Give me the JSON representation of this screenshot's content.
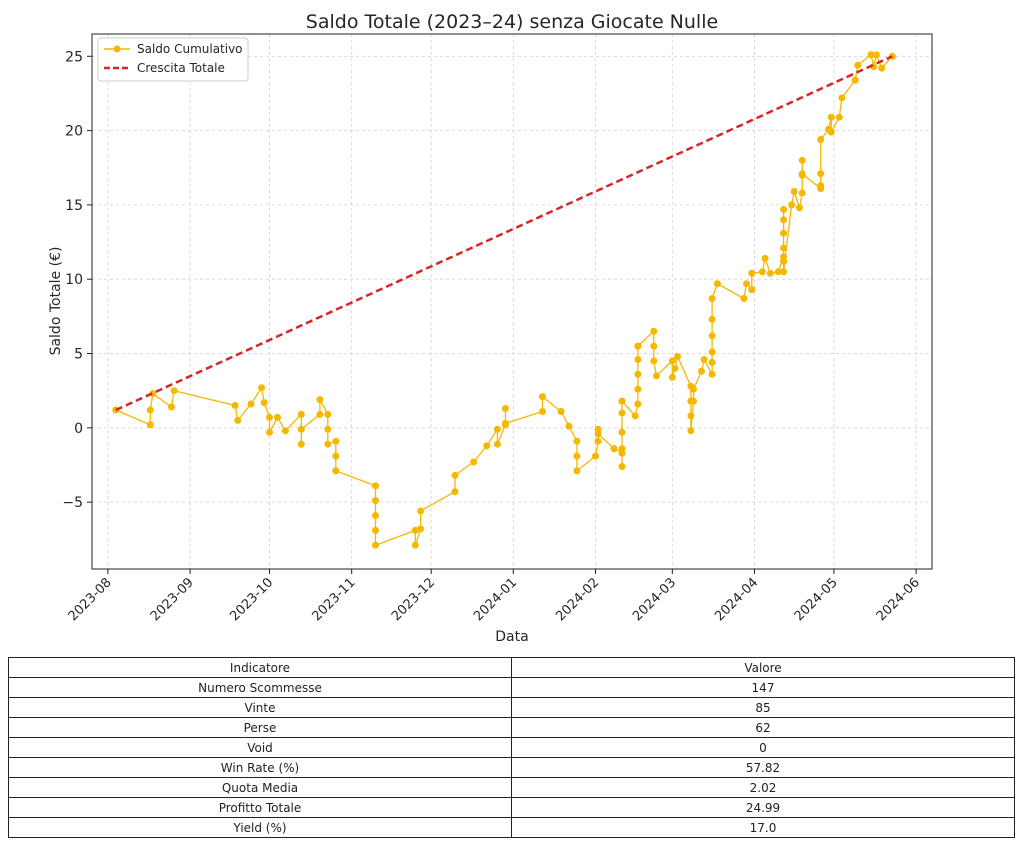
{
  "chart_data": {
    "type": "line",
    "title": "Saldo Totale (2023–24) senza Giocate Nulle",
    "xlabel": "Data",
    "ylabel": "Saldo Totale (€)",
    "x_ticks": [
      "2023-08",
      "2023-09",
      "2023-10",
      "2023-11",
      "2023-12",
      "2024-01",
      "2024-02",
      "2024-03",
      "2024-04",
      "2024-05",
      "2024-06"
    ],
    "y_ticks": [
      -5,
      0,
      5,
      10,
      15,
      20,
      25
    ],
    "xlim": [
      "2023-07-26",
      "2024-06-07"
    ],
    "ylim": [
      -9.5,
      26.5
    ],
    "grid": true,
    "legend_position": "top-left",
    "series": [
      {
        "name": "Saldo Cumulativo",
        "color": "#f5b800",
        "marker": "circle",
        "points": [
          [
            "2023-08-04",
            1.2
          ],
          [
            "2023-08-17",
            0.2
          ],
          [
            "2023-08-17",
            1.2
          ],
          [
            "2023-08-18",
            2.3
          ],
          [
            "2023-08-25",
            1.4
          ],
          [
            "2023-08-26",
            2.5
          ],
          [
            "2023-09-18",
            1.5
          ],
          [
            "2023-09-19",
            0.5
          ],
          [
            "2023-09-24",
            1.6
          ],
          [
            "2023-09-28",
            2.7
          ],
          [
            "2023-09-29",
            1.7
          ],
          [
            "2023-10-01",
            0.7
          ],
          [
            "2023-10-01",
            -0.3
          ],
          [
            "2023-10-04",
            0.7
          ],
          [
            "2023-10-07",
            -0.2
          ],
          [
            "2023-10-13",
            0.9
          ],
          [
            "2023-10-13",
            -0.1
          ],
          [
            "2023-10-13",
            -1.1
          ],
          [
            "2023-10-13",
            -0.1
          ],
          [
            "2023-10-20",
            0.9
          ],
          [
            "2023-10-20",
            1.9
          ],
          [
            "2023-10-23",
            0.9
          ],
          [
            "2023-10-23",
            -0.1
          ],
          [
            "2023-10-23",
            -1.1
          ],
          [
            "2023-10-26",
            -0.9
          ],
          [
            "2023-10-26",
            -1.9
          ],
          [
            "2023-10-26",
            -2.9
          ],
          [
            "2023-11-10",
            -3.9
          ],
          [
            "2023-11-10",
            -4.9
          ],
          [
            "2023-11-10",
            -5.9
          ],
          [
            "2023-11-10",
            -6.9
          ],
          [
            "2023-11-10",
            -7.9
          ],
          [
            "2023-11-25",
            -6.9
          ],
          [
            "2023-11-25",
            -7.9
          ],
          [
            "2023-11-27",
            -6.8
          ],
          [
            "2023-11-27",
            -5.6
          ],
          [
            "2023-12-10",
            -4.3
          ],
          [
            "2023-12-10",
            -3.2
          ],
          [
            "2023-12-17",
            -2.3
          ],
          [
            "2023-12-22",
            -1.2
          ],
          [
            "2023-12-26",
            -0.1
          ],
          [
            "2023-12-26",
            -1.1
          ],
          [
            "2023-12-29",
            0.2
          ],
          [
            "2023-12-29",
            1.3
          ],
          [
            "2023-12-29",
            0.3
          ],
          [
            "2024-01-12",
            1.1
          ],
          [
            "2024-01-12",
            2.1
          ],
          [
            "2024-01-19",
            1.1
          ],
          [
            "2024-01-22",
            0.1
          ],
          [
            "2024-01-25",
            -0.9
          ],
          [
            "2024-01-25",
            -1.9
          ],
          [
            "2024-01-25",
            -2.9
          ],
          [
            "2024-02-01",
            -1.9
          ],
          [
            "2024-02-02",
            -0.9
          ],
          [
            "2024-02-02",
            -0.1
          ],
          [
            "2024-02-02",
            -0.4
          ],
          [
            "2024-02-08",
            -1.4
          ],
          [
            "2024-02-11",
            -1.7
          ],
          [
            "2024-02-11",
            -2.6
          ],
          [
            "2024-02-11",
            -1.4
          ],
          [
            "2024-02-11",
            -0.3
          ],
          [
            "2024-02-11",
            1.0
          ],
          [
            "2024-02-11",
            1.8
          ],
          [
            "2024-02-16",
            0.8
          ],
          [
            "2024-02-17",
            1.6
          ],
          [
            "2024-02-17",
            2.6
          ],
          [
            "2024-02-17",
            3.6
          ],
          [
            "2024-02-17",
            4.6
          ],
          [
            "2024-02-17",
            5.5
          ],
          [
            "2024-02-23",
            6.5
          ],
          [
            "2024-02-23",
            5.5
          ],
          [
            "2024-02-23",
            4.5
          ],
          [
            "2024-02-24",
            3.5
          ],
          [
            "2024-03-01",
            4.5
          ],
          [
            "2024-03-01",
            3.4
          ],
          [
            "2024-03-02",
            4.0
          ],
          [
            "2024-03-03",
            4.8
          ],
          [
            "2024-03-08",
            2.8
          ],
          [
            "2024-03-08",
            1.8
          ],
          [
            "2024-03-08",
            0.8
          ],
          [
            "2024-03-08",
            -0.2
          ],
          [
            "2024-03-09",
            1.8
          ],
          [
            "2024-03-09",
            2.6
          ],
          [
            "2024-03-12",
            3.8
          ],
          [
            "2024-03-13",
            4.6
          ],
          [
            "2024-03-16",
            3.6
          ],
          [
            "2024-03-16",
            4.4
          ],
          [
            "2024-03-16",
            5.1
          ],
          [
            "2024-03-16",
            6.2
          ],
          [
            "2024-03-16",
            7.3
          ],
          [
            "2024-03-16",
            8.7
          ],
          [
            "2024-03-18",
            9.7
          ],
          [
            "2024-03-28",
            8.7
          ],
          [
            "2024-03-29",
            9.7
          ],
          [
            "2024-03-31",
            9.3
          ],
          [
            "2024-03-31",
            10.4
          ],
          [
            "2024-04-04",
            10.5
          ],
          [
            "2024-04-05",
            11.4
          ],
          [
            "2024-04-07",
            10.4
          ],
          [
            "2024-04-10",
            10.5
          ],
          [
            "2024-04-12",
            11.5
          ],
          [
            "2024-04-12",
            11.2
          ],
          [
            "2024-04-12",
            12.1
          ],
          [
            "2024-04-12",
            13.1
          ],
          [
            "2024-04-12",
            14.0
          ],
          [
            "2024-04-12",
            14.7
          ],
          [
            "2024-04-12",
            10.5
          ],
          [
            "2024-04-15",
            15.0
          ],
          [
            "2024-04-16",
            15.9
          ],
          [
            "2024-04-18",
            14.8
          ],
          [
            "2024-04-19",
            15.8
          ],
          [
            "2024-04-19",
            17.0
          ],
          [
            "2024-04-19",
            18.0
          ],
          [
            "2024-04-19",
            17.1
          ],
          [
            "2024-04-26",
            16.1
          ],
          [
            "2024-04-26",
            17.1
          ],
          [
            "2024-04-26",
            16.3
          ],
          [
            "2024-04-26",
            19.4
          ],
          [
            "2024-04-29",
            20.1
          ],
          [
            "2024-04-30",
            20.9
          ],
          [
            "2024-04-30",
            19.9
          ],
          [
            "2024-05-03",
            20.9
          ],
          [
            "2024-05-04",
            22.2
          ],
          [
            "2024-05-09",
            23.4
          ],
          [
            "2024-05-10",
            24.4
          ],
          [
            "2024-05-15",
            25.1
          ],
          [
            "2024-05-16",
            24.3
          ],
          [
            "2024-05-17",
            25.1
          ],
          [
            "2024-05-19",
            24.2
          ],
          [
            "2024-05-23",
            25.0
          ]
        ]
      },
      {
        "name": "Crescita Totale",
        "color": "#d62728",
        "style": "dashed",
        "points": [
          [
            "2023-08-04",
            1.2
          ],
          [
            "2024-05-23",
            25.0
          ]
        ]
      }
    ]
  },
  "table": {
    "headers": [
      "Indicatore",
      "Valore"
    ],
    "rows": [
      [
        "Numero Scommesse",
        "147"
      ],
      [
        "Vinte",
        "85"
      ],
      [
        "Perse",
        "62"
      ],
      [
        "Void",
        "0"
      ],
      [
        "Win Rate (%)",
        "57.82"
      ],
      [
        "Quota Media",
        "2.02"
      ],
      [
        "Profitto Totale",
        "24.99"
      ],
      [
        "Yield (%)",
        "17.0"
      ]
    ]
  }
}
